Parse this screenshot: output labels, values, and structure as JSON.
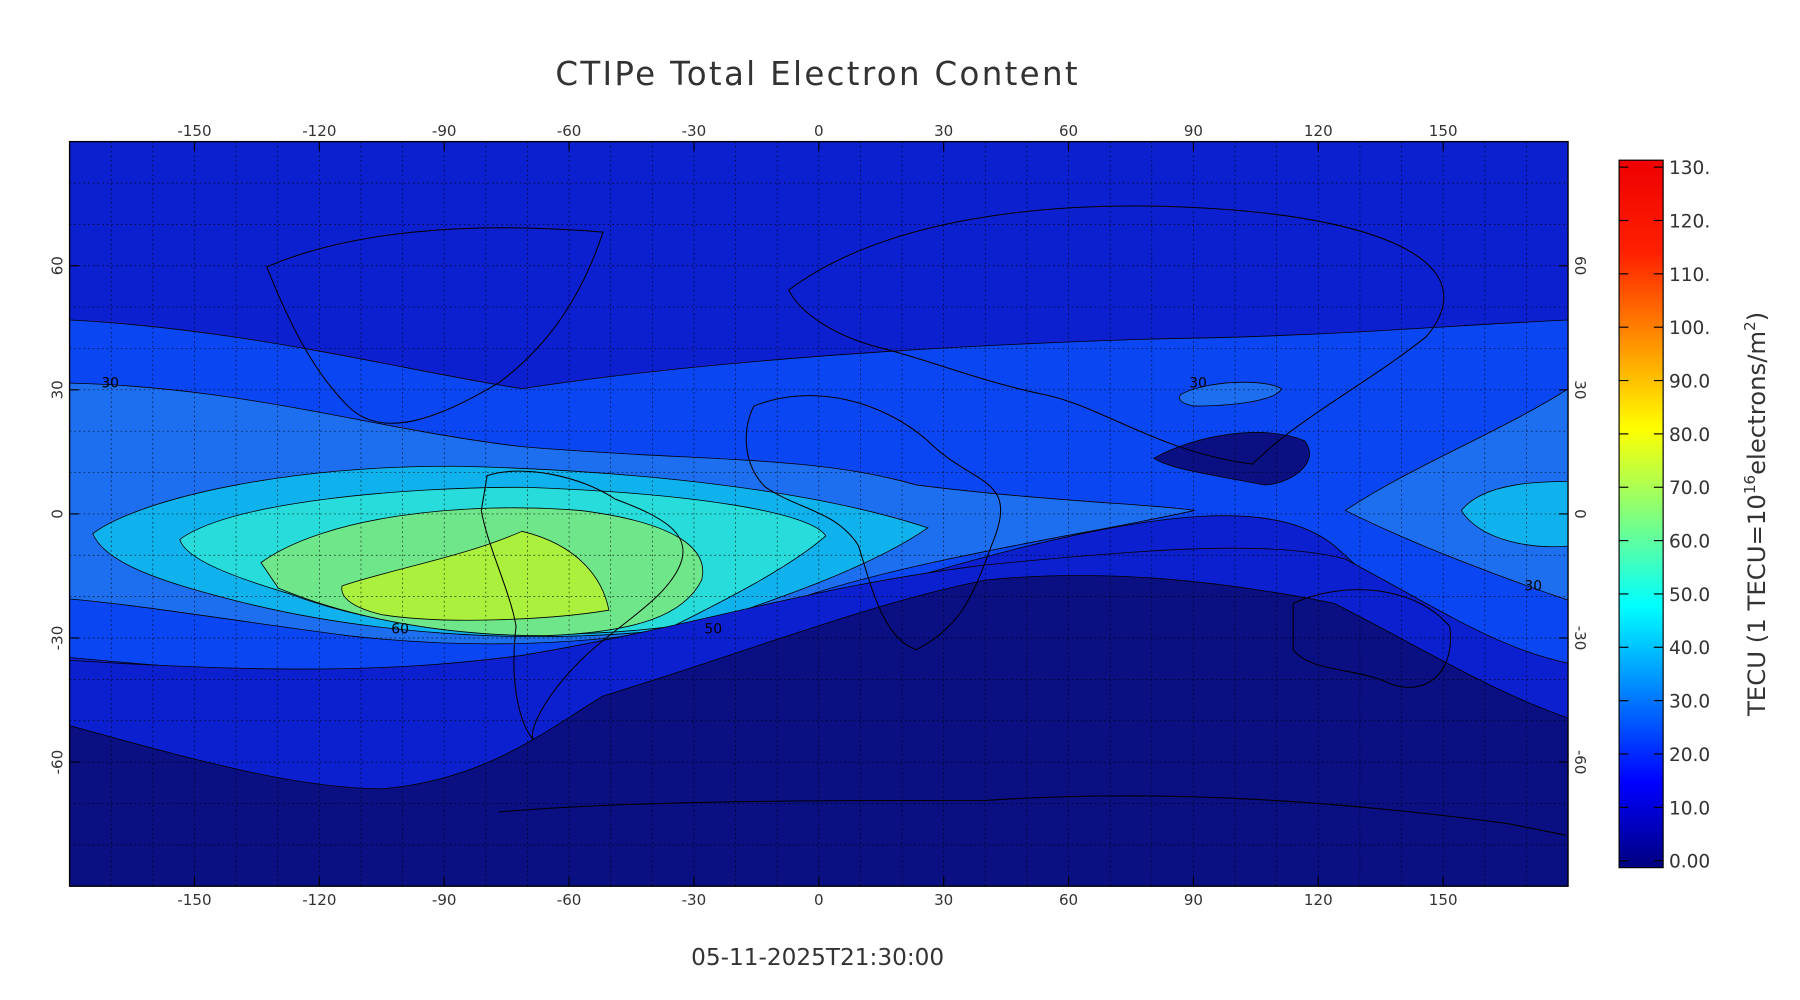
{
  "title": "CTIPe Total Electron Content",
  "timestamp": "05-11-2025T21:30:00",
  "map": {
    "xlim": [
      -180,
      180
    ],
    "ylim": [
      -90,
      90
    ],
    "lon_ticks": [
      -150,
      -120,
      -90,
      -60,
      -30,
      0,
      30,
      60,
      90,
      120,
      150
    ],
    "lat_ticks": [
      -60,
      -30,
      0,
      30,
      60
    ],
    "grid_step": 10,
    "contour_labels": [
      30,
      30,
      60,
      50,
      30
    ]
  },
  "colorbar": {
    "label": {
      "prefix": "TECU (1 TECU=10",
      "exp": "16",
      "mid": "electrons/m",
      "exp2": "2",
      "suffix": ")"
    },
    "ylim": [
      0,
      130
    ],
    "ticks": [
      {
        "value": 0,
        "label": "0.00"
      },
      {
        "value": 10,
        "label": "10.0"
      },
      {
        "value": 20,
        "label": "20.0"
      },
      {
        "value": 30,
        "label": "30.0"
      },
      {
        "value": 40,
        "label": "40.0"
      },
      {
        "value": 50,
        "label": "50.0"
      },
      {
        "value": 60,
        "label": "60.0"
      },
      {
        "value": 70,
        "label": "70.0"
      },
      {
        "value": 80,
        "label": "80.0"
      },
      {
        "value": 90,
        "label": "90.0"
      },
      {
        "value": 100,
        "label": "100."
      },
      {
        "value": 110,
        "label": "110."
      },
      {
        "value": 120,
        "label": "120."
      },
      {
        "value": 130,
        "label": "130."
      }
    ]
  }
}
